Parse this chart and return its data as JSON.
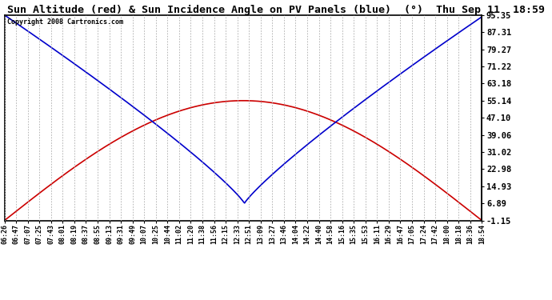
{
  "title": "Sun Altitude (red) & Sun Incidence Angle on PV Panels (blue)  (°)  Thu Sep 11  18:59",
  "copyright": "Copyright 2008 Cartronics.com",
  "ymin": -1.15,
  "ymax": 95.35,
  "yticks": [
    95.35,
    87.31,
    79.27,
    71.22,
    63.18,
    55.14,
    47.1,
    39.06,
    31.02,
    22.98,
    14.93,
    6.89,
    -1.15
  ],
  "bg_color": "#FFFFFF",
  "plot_bg_color": "#FFFFFF",
  "grid_color": "#AAAAAA",
  "red_color": "#CC0000",
  "blue_color": "#0000CC",
  "title_fontsize": 9.5,
  "xtick_labels": [
    "06:26",
    "06:47",
    "07:07",
    "07:25",
    "07:43",
    "08:01",
    "08:19",
    "08:37",
    "08:55",
    "09:13",
    "09:31",
    "09:49",
    "10:07",
    "10:25",
    "10:44",
    "11:02",
    "11:20",
    "11:38",
    "11:56",
    "12:15",
    "12:33",
    "12:51",
    "13:09",
    "13:27",
    "13:46",
    "14:04",
    "14:22",
    "14:40",
    "14:58",
    "15:16",
    "15:35",
    "15:53",
    "16:11",
    "16:29",
    "16:47",
    "17:05",
    "17:24",
    "17:42",
    "18:00",
    "18:18",
    "18:36",
    "18:54"
  ]
}
